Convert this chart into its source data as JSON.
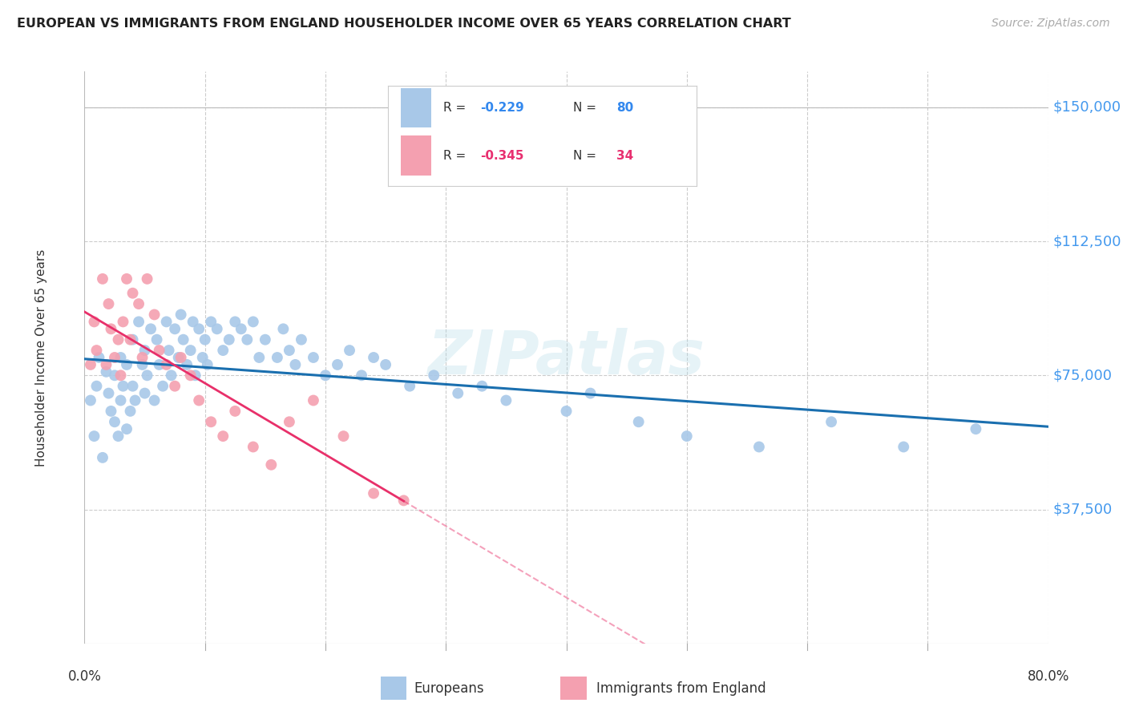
{
  "title": "EUROPEAN VS IMMIGRANTS FROM ENGLAND HOUSEHOLDER INCOME OVER 65 YEARS CORRELATION CHART",
  "source": "Source: ZipAtlas.com",
  "ylabel": "Householder Income Over 65 years",
  "xlim": [
    0.0,
    0.8
  ],
  "ylim": [
    0,
    160000
  ],
  "blue_color": "#a8c8e8",
  "pink_color": "#f4a0b0",
  "blue_line_color": "#1a6faf",
  "pink_line_color": "#e8306a",
  "watermark": "ZIPatlas",
  "europeans_x": [
    0.005,
    0.008,
    0.01,
    0.012,
    0.015,
    0.018,
    0.02,
    0.022,
    0.025,
    0.025,
    0.028,
    0.03,
    0.03,
    0.032,
    0.035,
    0.035,
    0.038,
    0.04,
    0.04,
    0.042,
    0.045,
    0.048,
    0.05,
    0.05,
    0.052,
    0.055,
    0.058,
    0.06,
    0.062,
    0.065,
    0.068,
    0.07,
    0.072,
    0.075,
    0.078,
    0.08,
    0.082,
    0.085,
    0.088,
    0.09,
    0.092,
    0.095,
    0.098,
    0.1,
    0.102,
    0.105,
    0.11,
    0.115,
    0.12,
    0.125,
    0.13,
    0.135,
    0.14,
    0.145,
    0.15,
    0.16,
    0.165,
    0.17,
    0.175,
    0.18,
    0.19,
    0.2,
    0.21,
    0.22,
    0.23,
    0.24,
    0.25,
    0.27,
    0.29,
    0.31,
    0.33,
    0.35,
    0.4,
    0.42,
    0.46,
    0.5,
    0.56,
    0.62,
    0.68,
    0.74
  ],
  "europeans_y": [
    68000,
    58000,
    72000,
    80000,
    52000,
    76000,
    70000,
    65000,
    62000,
    75000,
    58000,
    80000,
    68000,
    72000,
    78000,
    60000,
    65000,
    85000,
    72000,
    68000,
    90000,
    78000,
    82000,
    70000,
    75000,
    88000,
    68000,
    85000,
    78000,
    72000,
    90000,
    82000,
    75000,
    88000,
    80000,
    92000,
    85000,
    78000,
    82000,
    90000,
    75000,
    88000,
    80000,
    85000,
    78000,
    90000,
    88000,
    82000,
    85000,
    90000,
    88000,
    85000,
    90000,
    80000,
    85000,
    80000,
    88000,
    82000,
    78000,
    85000,
    80000,
    75000,
    78000,
    82000,
    75000,
    80000,
    78000,
    72000,
    75000,
    70000,
    72000,
    68000,
    65000,
    70000,
    62000,
    58000,
    55000,
    62000,
    55000,
    60000
  ],
  "england_x": [
    0.005,
    0.008,
    0.01,
    0.015,
    0.018,
    0.02,
    0.022,
    0.025,
    0.028,
    0.03,
    0.032,
    0.035,
    0.038,
    0.04,
    0.045,
    0.048,
    0.052,
    0.058,
    0.062,
    0.068,
    0.075,
    0.08,
    0.088,
    0.095,
    0.105,
    0.115,
    0.125,
    0.14,
    0.155,
    0.17,
    0.19,
    0.215,
    0.24,
    0.265
  ],
  "england_y": [
    78000,
    90000,
    82000,
    102000,
    78000,
    95000,
    88000,
    80000,
    85000,
    75000,
    90000,
    102000,
    85000,
    98000,
    95000,
    80000,
    102000,
    92000,
    82000,
    78000,
    72000,
    80000,
    75000,
    68000,
    62000,
    58000,
    65000,
    55000,
    50000,
    62000,
    68000,
    58000,
    42000,
    40000
  ],
  "blue_r": "-0.229",
  "blue_n": "80",
  "pink_r": "-0.345",
  "pink_n": "34"
}
